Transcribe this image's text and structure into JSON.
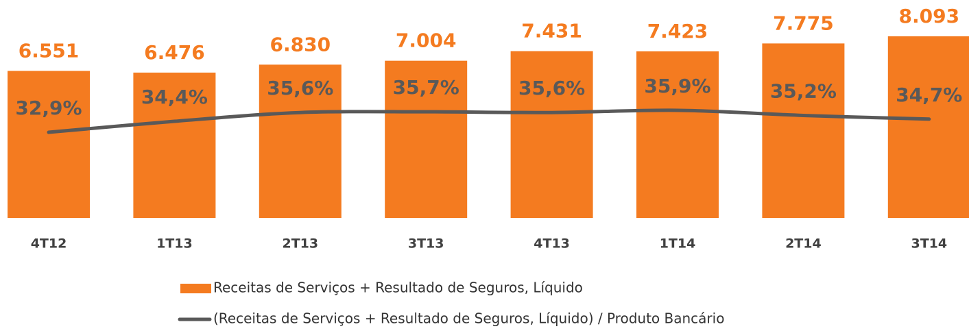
{
  "chart_data": {
    "type": "bar",
    "categories": [
      "4T12",
      "1T13",
      "2T13",
      "3T13",
      "4T13",
      "1T14",
      "2T14",
      "3T14"
    ],
    "series": [
      {
        "name": "Receitas de Serviços + Resultado de Seguros, Líquido",
        "type": "bar",
        "color": "#f47b20",
        "values": [
          6551,
          6476,
          6830,
          7004,
          7431,
          7423,
          7775,
          8093
        ],
        "value_labels": [
          "6.551",
          "6.476",
          "6.830",
          "7.004",
          "7.431",
          "7.423",
          "7.775",
          "8.093"
        ]
      },
      {
        "name": "(Receitas de Serviços + Resultado de Seguros, Líquido) / Produto Bancário",
        "type": "line",
        "axis": "y2",
        "color": "#595959",
        "values": [
          32.9,
          34.4,
          35.6,
          35.7,
          35.6,
          35.9,
          35.2,
          34.7
        ],
        "value_labels": [
          "32,9%",
          "34,4%",
          "35,6%",
          "35,7%",
          "35,6%",
          "35,9%",
          "35,2%",
          "34,7%"
        ]
      }
    ],
    "ylim": [
      0,
      9100
    ],
    "y2lim": [
      21.2,
      49.1
    ],
    "grid": false
  }
}
